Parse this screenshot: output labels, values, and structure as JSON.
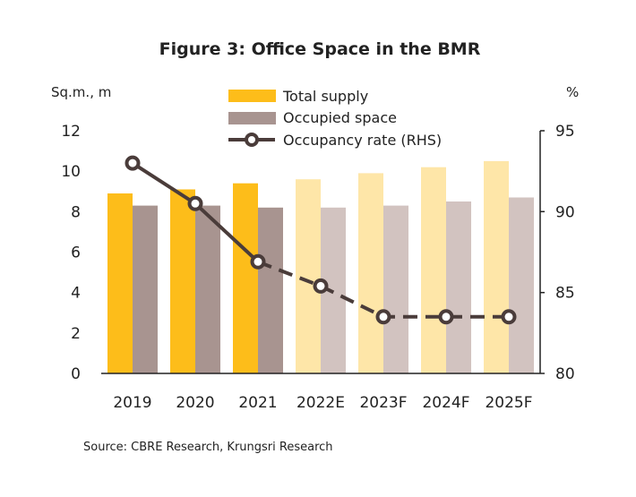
{
  "chart_data": {
    "type": "bar",
    "title": "Figure 3: Office Space in the BMR",
    "left_axis_unit": "Sq.m., m",
    "right_axis_unit": "%",
    "categories": [
      "2019",
      "2020",
      "2021",
      "2022E",
      "2023F",
      "2024F",
      "2025F"
    ],
    "ylim_left": [
      0,
      12
    ],
    "yticks_left": [
      "0",
      "2",
      "4",
      "6",
      "8",
      "10",
      "12"
    ],
    "ylim_right": [
      80,
      95
    ],
    "yticks_right": [
      "80",
      "85",
      "90",
      "95"
    ],
    "series": [
      {
        "name": "Total supply",
        "kind": "bar",
        "axis": "left",
        "values": [
          8.9,
          9.1,
          9.4,
          9.6,
          9.9,
          10.2,
          10.5
        ],
        "color": "#FDBD1A",
        "forecast_color": "#FEE6A8"
      },
      {
        "name": "Occupied space",
        "kind": "bar",
        "axis": "left",
        "values": [
          8.3,
          8.3,
          8.2,
          8.2,
          8.3,
          8.5,
          8.7
        ],
        "color": "#A89490",
        "forecast_color": "#D2C3C0"
      },
      {
        "name": "Occupancy rate (RHS)",
        "kind": "line",
        "axis": "right",
        "values": [
          93.0,
          90.5,
          86.9,
          85.4,
          83.5,
          83.5,
          83.5
        ],
        "color": "#4A3C3A"
      }
    ],
    "forecast_start_index": 3,
    "legend_position": "top-center",
    "grid": false,
    "source": "Source: CBRE Research, Krungsri Research"
  }
}
